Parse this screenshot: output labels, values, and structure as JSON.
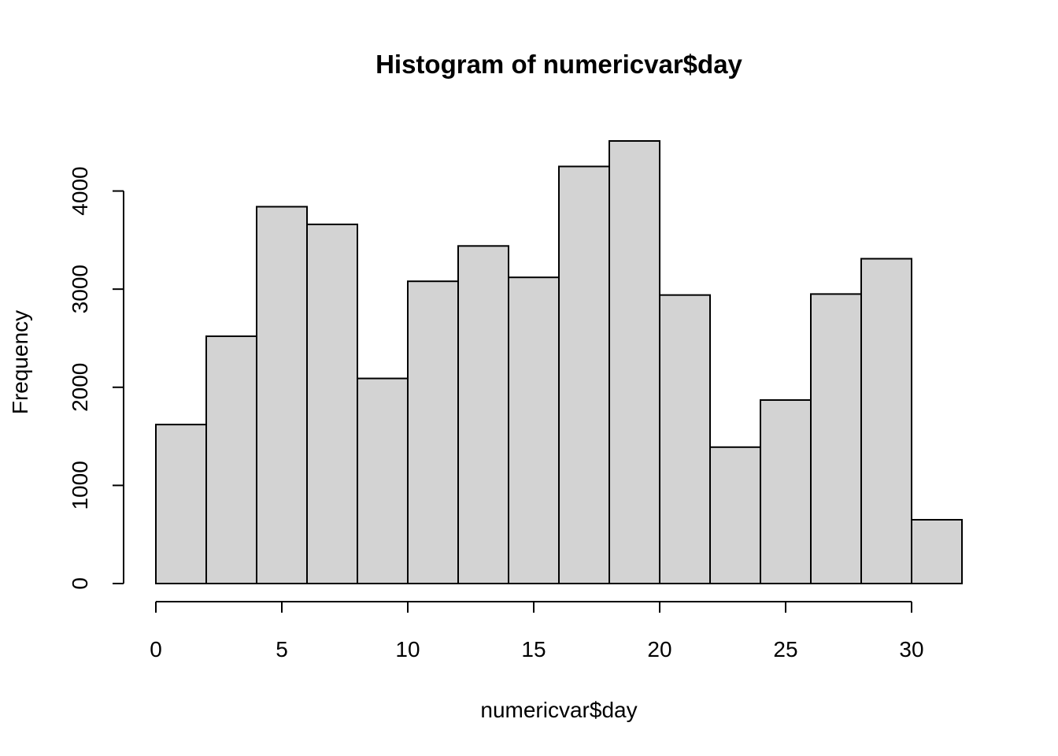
{
  "chart_data": {
    "type": "bar",
    "title": "Histogram of numericvar$day",
    "xlabel": "numericvar$day",
    "ylabel": "Frequency",
    "bin_edges": [
      0,
      2,
      4,
      6,
      8,
      10,
      12,
      14,
      16,
      18,
      20,
      22,
      24,
      26,
      28,
      30,
      32
    ],
    "values": [
      1620,
      2520,
      3840,
      3660,
      2090,
      3080,
      3440,
      3120,
      4250,
      4510,
      2940,
      1390,
      1870,
      2950,
      3310,
      650
    ],
    "xlim": [
      0,
      32
    ],
    "ylim": [
      0,
      4510
    ],
    "x_ticks": [
      0,
      5,
      10,
      15,
      20,
      25,
      30
    ],
    "x_tick_labels": [
      "0",
      "5",
      "10",
      "15",
      "20",
      "25",
      "30"
    ],
    "y_ticks": [
      0,
      1000,
      2000,
      3000,
      4000
    ],
    "y_tick_labels": [
      "0",
      "1000",
      "2000",
      "3000",
      "4000"
    ],
    "grid": false,
    "bar_fill": "#d3d3d3",
    "bar_stroke": "#000000"
  }
}
